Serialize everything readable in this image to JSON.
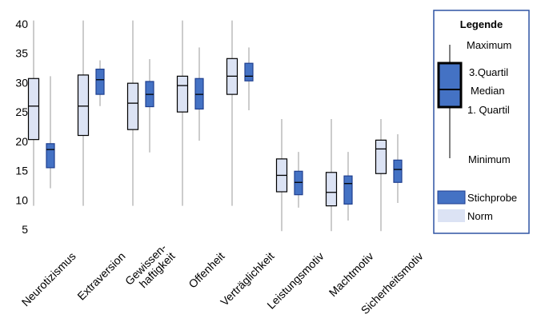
{
  "chart_data": {
    "type": "boxplot",
    "title": "",
    "xlabel": "",
    "ylabel": "",
    "ylim": [
      5,
      40
    ],
    "yticks": [
      5,
      10,
      15,
      20,
      25,
      30,
      35,
      40
    ],
    "categories": [
      {
        "lines": [
          "Neurotizismus"
        ]
      },
      {
        "lines": [
          "Extraversion"
        ]
      },
      {
        "lines": [
          "Gewissen-",
          "haftigkeit"
        ]
      },
      {
        "lines": [
          "Offenheit"
        ]
      },
      {
        "lines": [
          "Verträglichkeit"
        ]
      },
      {
        "lines": [
          "Leistungsmotiv"
        ]
      },
      {
        "lines": [
          "Machtmotiv"
        ]
      },
      {
        "lines": [
          "Sicherheitsmotiv"
        ]
      }
    ],
    "series": [
      {
        "name": "Norm",
        "color": "#dce3f4",
        "stroke": "#000000",
        "boxes": [
          {
            "min": 9,
            "q1": 20.3,
            "median": 26,
            "q3": 30.7,
            "max": 40.6
          },
          {
            "min": 9,
            "q1": 21,
            "median": 26,
            "q3": 31.3,
            "max": 40.6
          },
          {
            "min": 9,
            "q1": 22,
            "median": 26.5,
            "q3": 29.9,
            "max": 40.6
          },
          {
            "min": 9,
            "q1": 25,
            "median": 29.5,
            "q3": 31.1,
            "max": 40.6
          },
          {
            "min": 9,
            "q1": 28,
            "median": 31.1,
            "q3": 34.1,
            "max": 40.6
          },
          {
            "min": 4.7,
            "q1": 11.4,
            "median": 14.2,
            "q3": 17,
            "max": 23.8
          },
          {
            "min": 4.7,
            "q1": 9,
            "median": 11.3,
            "q3": 14.7,
            "max": 23.8
          },
          {
            "min": 4.7,
            "q1": 14.5,
            "median": 18.7,
            "q3": 20.2,
            "max": 23.8
          }
        ]
      },
      {
        "name": "Stichprobe",
        "color": "#4472c4",
        "stroke": "#1f3f8f",
        "boxes": [
          {
            "min": 12,
            "q1": 15.5,
            "median": 18.6,
            "q3": 19.6,
            "max": 31.1
          },
          {
            "min": 26,
            "q1": 28,
            "median": 30.5,
            "q3": 32.3,
            "max": 33.8
          },
          {
            "min": 18.1,
            "q1": 25.9,
            "median": 28,
            "q3": 30.2,
            "max": 34
          },
          {
            "min": 20.1,
            "q1": 25.5,
            "median": 28,
            "q3": 30.7,
            "max": 36
          },
          {
            "min": 25.3,
            "q1": 30.3,
            "median": 31.1,
            "q3": 33.3,
            "max": 36
          },
          {
            "min": 8.7,
            "q1": 10.9,
            "median": 13,
            "q3": 14.9,
            "max": 18.2
          },
          {
            "min": 6.5,
            "q1": 9.3,
            "median": 12.8,
            "q3": 14.1,
            "max": 18.2
          },
          {
            "min": 9.5,
            "q1": 13,
            "median": 15.2,
            "q3": 16.8,
            "max": 21.2
          }
        ]
      }
    ],
    "legend": {
      "title": "Legende",
      "labels": {
        "maximum": "Maximum",
        "q3": "3.Quartil",
        "median": "Median",
        "q1": "1. Quartil",
        "minimum": "Minimum"
      },
      "entries": [
        "Stichprobe",
        "Norm"
      ],
      "position": "right",
      "frame_color": "#2f54a3"
    }
  }
}
